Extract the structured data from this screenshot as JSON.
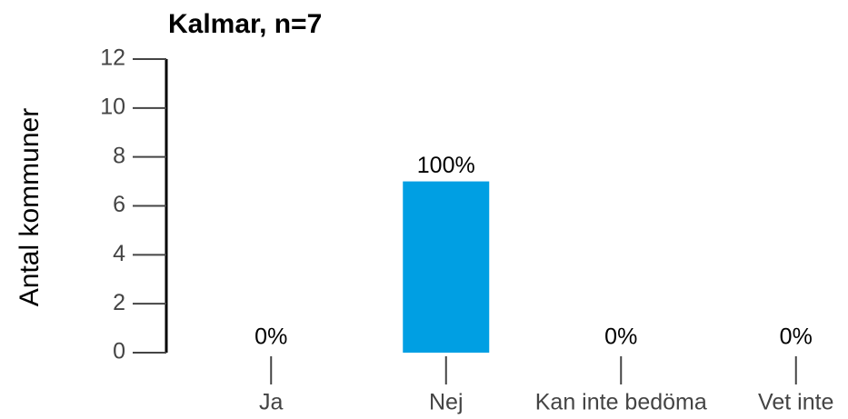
{
  "chart_data": {
    "type": "bar",
    "title": "Kalmar, n=7",
    "y_label": "Antal kommuner",
    "categories": [
      "Ja",
      "Nej",
      "Kan inte bedöma",
      "Vet inte"
    ],
    "values": [
      0,
      7,
      0,
      0
    ],
    "value_labels": [
      "0%",
      "100%",
      "0%",
      "0%"
    ],
    "color": "#009fe3",
    "ylim": [
      0,
      12
    ],
    "yticks": [
      0,
      2,
      4,
      6,
      8,
      10,
      12
    ]
  }
}
